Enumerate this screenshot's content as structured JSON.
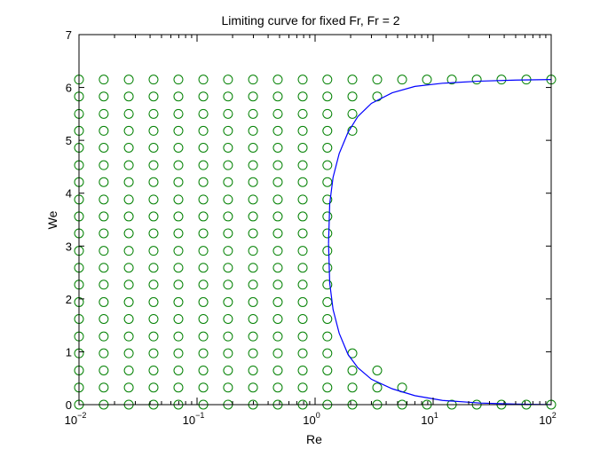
{
  "chart_data": {
    "type": "scatter",
    "title": "Limiting curve for fixed Fr, Fr = 2",
    "xlabel": "Re",
    "ylabel": "We",
    "xscale": "log",
    "xlim": [
      0.01,
      100
    ],
    "ylim": [
      0,
      7
    ],
    "x_ticks": [
      {
        "value": 0.01,
        "base": "10",
        "exp": "−2"
      },
      {
        "value": 0.1,
        "base": "10",
        "exp": "−1"
      },
      {
        "value": 1,
        "base": "10",
        "exp": "0"
      },
      {
        "value": 10,
        "base": "10",
        "exp": "1"
      },
      {
        "value": 100,
        "base": "10",
        "exp": "2"
      }
    ],
    "y_ticks": [
      0,
      1,
      2,
      3,
      4,
      5,
      6,
      7
    ],
    "grid": false,
    "colors": {
      "points": "#008000",
      "curve": "#0000ff"
    },
    "point_x_values": [
      0.01,
      0.0162,
      0.0264,
      0.0428,
      0.0695,
      0.113,
      0.183,
      0.298,
      0.483,
      0.785,
      1.27,
      2.07,
      3.36,
      5.46,
      8.86,
      14.4,
      23.4,
      37.9,
      61.6,
      100
    ],
    "point_y_values": [
      0,
      0.324,
      0.647,
      0.971,
      1.29,
      1.62,
      1.94,
      2.27,
      2.59,
      2.91,
      3.24,
      3.56,
      3.88,
      4.21,
      4.53,
      4.86,
      5.18,
      5.5,
      5.83,
      6.15
    ],
    "series": [
      {
        "kind": "points",
        "marker": "circle",
        "note_rows_present_by_y": "rows are listed per y-level as the x-values shown",
        "rows": [
          {
            "y": 0,
            "x": [
              0.01,
              0.0162,
              0.0264,
              0.0428,
              0.0695,
              0.113,
              0.183,
              0.298,
              0.483,
              0.785,
              1.27,
              2.07,
              3.36,
              5.46,
              8.86,
              14.4,
              23.4,
              37.9,
              61.6,
              100
            ]
          },
          {
            "y": 0.324,
            "x": [
              0.01,
              0.0162,
              0.0264,
              0.0428,
              0.0695,
              0.113,
              0.183,
              0.298,
              0.483,
              0.785,
              1.27,
              2.07,
              3.36,
              5.46
            ]
          },
          {
            "y": 0.647,
            "x": [
              0.01,
              0.0162,
              0.0264,
              0.0428,
              0.0695,
              0.113,
              0.183,
              0.298,
              0.483,
              0.785,
              1.27,
              2.07,
              3.36
            ]
          },
          {
            "y": 0.971,
            "x": [
              0.01,
              0.0162,
              0.0264,
              0.0428,
              0.0695,
              0.113,
              0.183,
              0.298,
              0.483,
              0.785,
              1.27,
              2.07
            ]
          },
          {
            "y": 1.29,
            "x": [
              0.01,
              0.0162,
              0.0264,
              0.0428,
              0.0695,
              0.113,
              0.183,
              0.298,
              0.483,
              0.785,
              1.27
            ]
          },
          {
            "y": 1.62,
            "x": [
              0.01,
              0.0162,
              0.0264,
              0.0428,
              0.0695,
              0.113,
              0.183,
              0.298,
              0.483,
              0.785,
              1.27
            ]
          },
          {
            "y": 1.94,
            "x": [
              0.01,
              0.0162,
              0.0264,
              0.0428,
              0.0695,
              0.113,
              0.183,
              0.298,
              0.483,
              0.785,
              1.27
            ]
          },
          {
            "y": 2.27,
            "x": [
              0.01,
              0.0162,
              0.0264,
              0.0428,
              0.0695,
              0.113,
              0.183,
              0.298,
              0.483,
              0.785,
              1.27
            ]
          },
          {
            "y": 2.59,
            "x": [
              0.01,
              0.0162,
              0.0264,
              0.0428,
              0.0695,
              0.113,
              0.183,
              0.298,
              0.483,
              0.785,
              1.27
            ]
          },
          {
            "y": 2.91,
            "x": [
              0.01,
              0.0162,
              0.0264,
              0.0428,
              0.0695,
              0.113,
              0.183,
              0.298,
              0.483,
              0.785,
              1.27
            ]
          },
          {
            "y": 3.24,
            "x": [
              0.01,
              0.0162,
              0.0264,
              0.0428,
              0.0695,
              0.113,
              0.183,
              0.298,
              0.483,
              0.785,
              1.27
            ]
          },
          {
            "y": 3.56,
            "x": [
              0.01,
              0.0162,
              0.0264,
              0.0428,
              0.0695,
              0.113,
              0.183,
              0.298,
              0.483,
              0.785,
              1.27
            ]
          },
          {
            "y": 3.88,
            "x": [
              0.01,
              0.0162,
              0.0264,
              0.0428,
              0.0695,
              0.113,
              0.183,
              0.298,
              0.483,
              0.785,
              1.27
            ]
          },
          {
            "y": 4.21,
            "x": [
              0.01,
              0.0162,
              0.0264,
              0.0428,
              0.0695,
              0.113,
              0.183,
              0.298,
              0.483,
              0.785,
              1.27
            ]
          },
          {
            "y": 4.53,
            "x": [
              0.01,
              0.0162,
              0.0264,
              0.0428,
              0.0695,
              0.113,
              0.183,
              0.298,
              0.483,
              0.785,
              1.27
            ]
          },
          {
            "y": 4.86,
            "x": [
              0.01,
              0.0162,
              0.0264,
              0.0428,
              0.0695,
              0.113,
              0.183,
              0.298,
              0.483,
              0.785,
              1.27
            ]
          },
          {
            "y": 5.18,
            "x": [
              0.01,
              0.0162,
              0.0264,
              0.0428,
              0.0695,
              0.113,
              0.183,
              0.298,
              0.483,
              0.785,
              1.27,
              2.07
            ]
          },
          {
            "y": 5.5,
            "x": [
              0.01,
              0.0162,
              0.0264,
              0.0428,
              0.0695,
              0.113,
              0.183,
              0.298,
              0.483,
              0.785,
              1.27,
              2.07
            ]
          },
          {
            "y": 5.83,
            "x": [
              0.01,
              0.0162,
              0.0264,
              0.0428,
              0.0695,
              0.113,
              0.183,
              0.298,
              0.483,
              0.785,
              1.27,
              2.07,
              3.36
            ]
          },
          {
            "y": 6.15,
            "x": [
              0.01,
              0.0162,
              0.0264,
              0.0428,
              0.0695,
              0.113,
              0.183,
              0.298,
              0.483,
              0.785,
              1.27,
              2.07,
              3.36,
              5.46,
              8.86,
              14.4,
              23.4,
              37.9,
              61.6,
              100
            ]
          }
        ]
      },
      {
        "kind": "line",
        "upper_branch": [
          [
            1.3,
            3.05
          ],
          [
            1.33,
            3.8
          ],
          [
            1.42,
            4.3
          ],
          [
            1.6,
            4.75
          ],
          [
            1.9,
            5.15
          ],
          [
            2.3,
            5.45
          ],
          [
            3.0,
            5.7
          ],
          [
            4.5,
            5.9
          ],
          [
            7.0,
            6.02
          ],
          [
            12,
            6.08
          ],
          [
            25,
            6.12
          ],
          [
            50,
            6.14
          ],
          [
            100,
            6.15
          ]
        ],
        "lower_branch": [
          [
            1.3,
            3.05
          ],
          [
            1.33,
            2.3
          ],
          [
            1.42,
            1.8
          ],
          [
            1.6,
            1.35
          ],
          [
            1.9,
            0.95
          ],
          [
            2.3,
            0.7
          ],
          [
            3.0,
            0.48
          ],
          [
            4.5,
            0.3
          ],
          [
            7.0,
            0.17
          ],
          [
            12,
            0.08
          ],
          [
            25,
            0.03
          ],
          [
            50,
            0.01
          ],
          [
            100,
            0.0
          ]
        ]
      }
    ]
  }
}
